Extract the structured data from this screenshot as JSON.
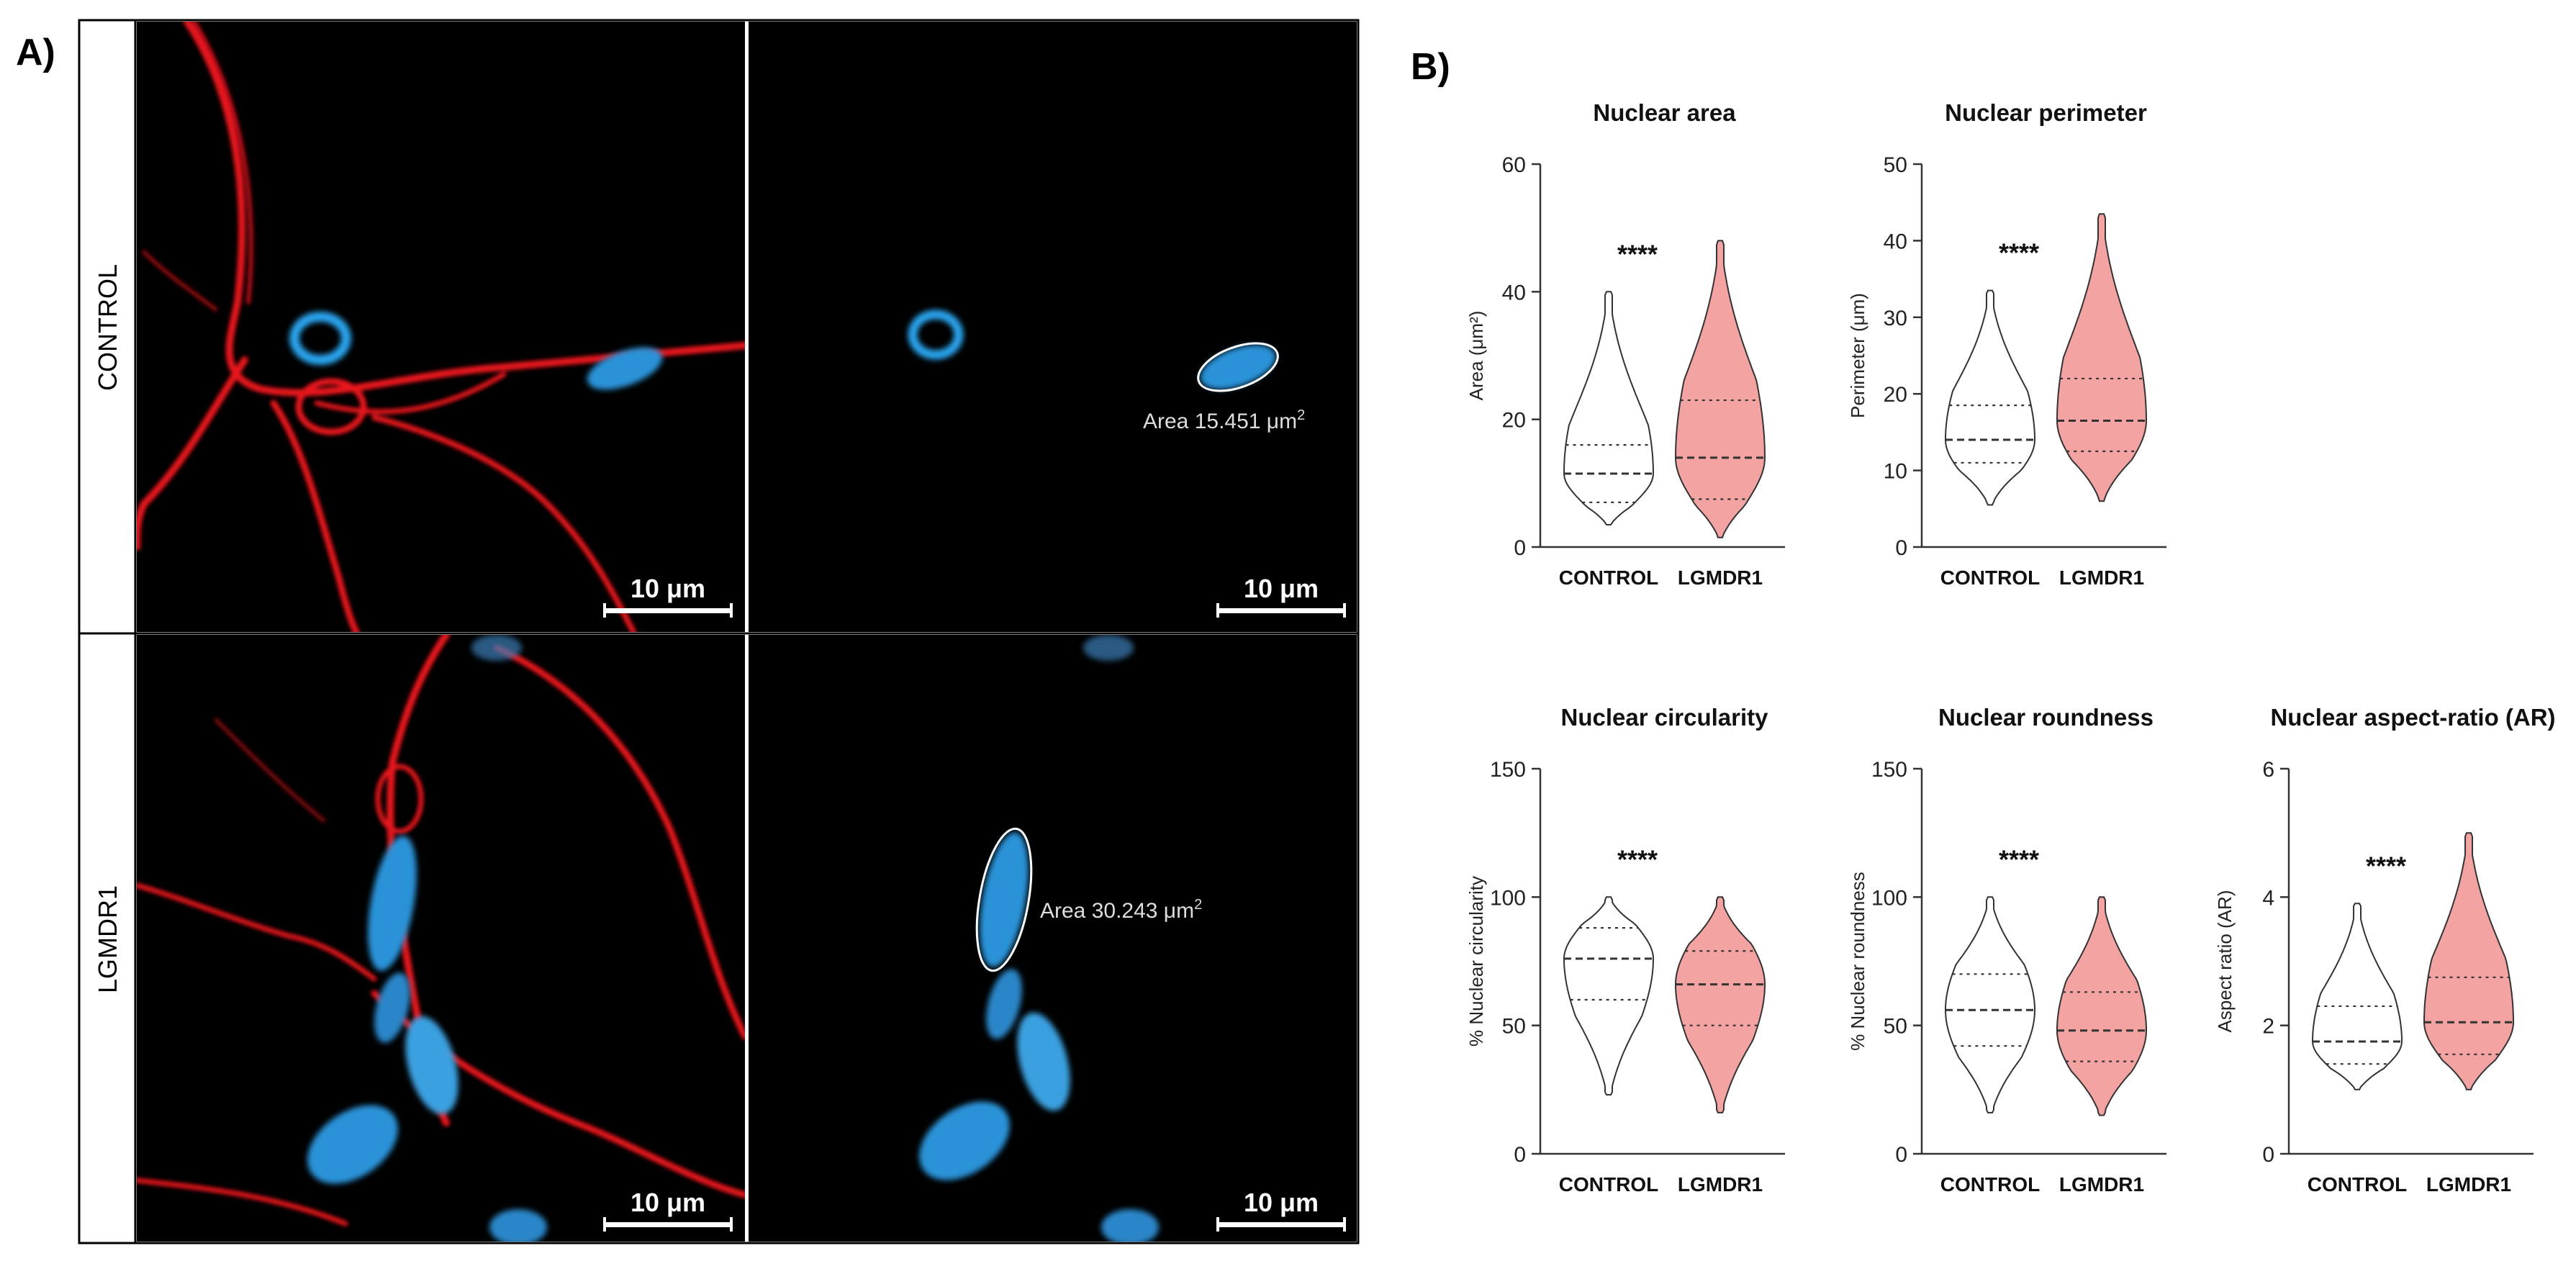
{
  "panel_a": {
    "label": "A)",
    "row_labels": [
      "CONTROL",
      "LGMDR1"
    ],
    "scale_bar_label": "10 μm",
    "annotations": [
      {
        "text": "Area 15.451 μm",
        "superscript": "2"
      },
      {
        "text": "Area 30.243 μm",
        "superscript": "2"
      }
    ]
  },
  "panel_b": {
    "label": "B)"
  },
  "chart_data": [
    {
      "type": "violin",
      "title": "Nuclear area",
      "ylabel": "Area (μm²)",
      "ylim": [
        0,
        60
      ],
      "yticks": [
        0,
        20,
        40,
        60
      ],
      "categories": [
        "CONTROL",
        "LGMDR1"
      ],
      "significance": "****",
      "series": [
        {
          "category": "CONTROL",
          "color": "#ffffff",
          "min": 3.5,
          "max": 40,
          "q1": 7,
          "median": 11.5,
          "q3": 16
        },
        {
          "category": "LGMDR1",
          "color": "#f4a3a3",
          "min": 1.5,
          "max": 48,
          "q1": 7.5,
          "median": 14,
          "q3": 23
        }
      ]
    },
    {
      "type": "violin",
      "title": "Nuclear perimeter",
      "ylabel": "Perimeter (μm)",
      "ylim": [
        0,
        50
      ],
      "yticks": [
        0,
        10,
        20,
        30,
        40,
        50
      ],
      "categories": [
        "CONTROL",
        "LGMDR1"
      ],
      "significance": "****",
      "series": [
        {
          "category": "CONTROL",
          "color": "#ffffff",
          "min": 5.5,
          "max": 33.5,
          "q1": 11,
          "median": 14,
          "q3": 18.5
        },
        {
          "category": "LGMDR1",
          "color": "#f4a3a3",
          "min": 6,
          "max": 43.5,
          "q1": 12.5,
          "median": 16.5,
          "q3": 22
        }
      ]
    },
    {
      "type": "violin",
      "title": "Nuclear circularity",
      "ylabel": "% Nuclear circularity",
      "ylim": [
        0,
        150
      ],
      "yticks": [
        0,
        50,
        100,
        150
      ],
      "categories": [
        "CONTROL",
        "LGMDR1"
      ],
      "significance": "****",
      "series": [
        {
          "category": "CONTROL",
          "color": "#ffffff",
          "min": 23,
          "max": 100,
          "q1": 60,
          "median": 76,
          "q3": 88
        },
        {
          "category": "LGMDR1",
          "color": "#f4a3a3",
          "min": 16,
          "max": 100,
          "q1": 50,
          "median": 66,
          "q3": 79
        }
      ]
    },
    {
      "type": "violin",
      "title": "Nuclear roundness",
      "ylabel": "% Nuclear roundness",
      "ylim": [
        0,
        150
      ],
      "yticks": [
        0,
        50,
        100,
        150
      ],
      "categories": [
        "CONTROL",
        "LGMDR1"
      ],
      "significance": "****",
      "series": [
        {
          "category": "CONTROL",
          "color": "#ffffff",
          "min": 16,
          "max": 100,
          "q1": 42,
          "median": 56,
          "q3": 70
        },
        {
          "category": "LGMDR1",
          "color": "#f4a3a3",
          "min": 15,
          "max": 100,
          "q1": 36,
          "median": 48,
          "q3": 63
        }
      ]
    },
    {
      "type": "violin",
      "title": "Nuclear aspect-ratio (AR)",
      "ylabel": "Aspect ratio (AR)",
      "ylim": [
        0,
        6
      ],
      "yticks": [
        0,
        2,
        4,
        6
      ],
      "categories": [
        "CONTROL",
        "LGMDR1"
      ],
      "significance": "****",
      "series": [
        {
          "category": "CONTROL",
          "color": "#ffffff",
          "min": 1.0,
          "max": 3.9,
          "q1": 1.4,
          "median": 1.75,
          "q3": 2.3
        },
        {
          "category": "LGMDR1",
          "color": "#f4a3a3",
          "min": 1.0,
          "max": 5.0,
          "q1": 1.55,
          "median": 2.05,
          "q3": 2.75
        }
      ]
    }
  ]
}
